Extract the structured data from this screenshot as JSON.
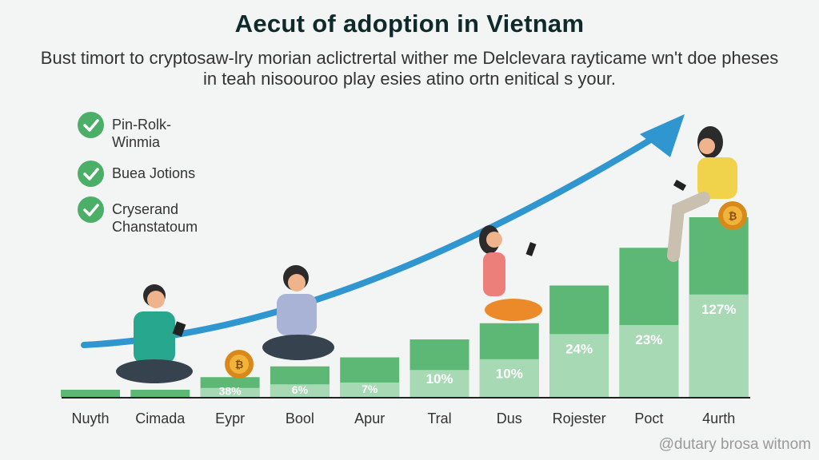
{
  "header": {
    "title": "Aecut of adoption in Vietnam",
    "subtitle": "Bust timort to cryptosaw-lry morian aclictrertal wither me Delclevara rayticame wn't doe pheses in teah nisoouroo play esies atino ortn enitical s your."
  },
  "checklist": [
    {
      "label": "Pin-Rolk-Winmia",
      "icon": "check-circle-icon"
    },
    {
      "label": "Buea Jotions",
      "icon": "check-circle-icon"
    },
    {
      "label": "Cryserand Chanstatoum",
      "icon": "check-circle-icon"
    }
  ],
  "watermark": "@dutary brosa witnom",
  "colors": {
    "bar_dark": "#5cb874",
    "bar_light": "#a7d9b5",
    "arrow": "#2f96d0",
    "check": "#4caf67",
    "coin": "#d9891c"
  },
  "chart_data": {
    "type": "bar",
    "title": "Aecut of adoption in Vietnam",
    "categories": [
      "Nuyth",
      "Cimada",
      "Eypr",
      "Bool",
      "Apur",
      "Tral",
      "Dus",
      "Rojester",
      "Poct",
      "4urth"
    ],
    "bar_levels_percent_of_max": [
      4,
      4,
      11,
      17,
      22,
      32,
      41,
      62,
      83,
      100
    ],
    "light_segment_percent_of_max": [
      0,
      0,
      5,
      7,
      8,
      15,
      21,
      35,
      40,
      57
    ],
    "data_labels": [
      "",
      "",
      "38%",
      "6%",
      "7%",
      "10%",
      "10%",
      "24%",
      "23%",
      "127%"
    ],
    "trend_arrow": "rising",
    "grid": false,
    "legend": "none"
  }
}
